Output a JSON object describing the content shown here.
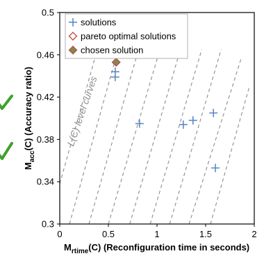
{
  "chart_data": {
    "type": "scatter",
    "x_axis": {
      "label_main": "M",
      "label_sub": "rtime",
      "label_rest": "(C) (Reconfiguration time in seconds)",
      "range": [
        0,
        2
      ],
      "ticks": [
        "0",
        "0.5",
        "1",
        "1.5",
        "2"
      ]
    },
    "y_axis": {
      "label_main": "M",
      "label_sub": "acc",
      "label_rest": "(C) (Accuracy ratio)",
      "range": [
        0.3,
        0.5
      ],
      "ticks": [
        "0.3",
        "0.34",
        "0.38",
        "0.42",
        "0.46",
        "0.5"
      ]
    },
    "grid": false,
    "legend_position": "top-left",
    "series": [
      {
        "name": "solutions",
        "marker": "plus",
        "color": "#5b8ac6",
        "points": [
          {
            "x": 0.57,
            "y": 0.439
          },
          {
            "x": 0.57,
            "y": 0.444
          },
          {
            "x": 0.82,
            "y": 0.395
          },
          {
            "x": 1.27,
            "y": 0.394
          },
          {
            "x": 1.37,
            "y": 0.398
          },
          {
            "x": 1.58,
            "y": 0.405
          },
          {
            "x": 1.6,
            "y": 0.353
          }
        ]
      },
      {
        "name": "pareto optimal solutions",
        "marker": "diamond-open",
        "color": "#c0504d",
        "points": [
          {
            "x": 0.58,
            "y": 0.453
          }
        ]
      },
      {
        "name": "chosen solution",
        "marker": "diamond-filled",
        "color": "#c0504d",
        "fill": "#7a8c4e",
        "points": [
          {
            "x": 0.58,
            "y": 0.453
          }
        ]
      }
    ],
    "level_curves": {
      "label": "L(C) level curves",
      "color": "#8c8c8c",
      "lines": [
        {
          "from": {
            "x": 0.0,
            "y": 0.338
          },
          "to": {
            "x": 0.38,
            "y": 0.463
          }
        },
        {
          "from": {
            "x": 0.1,
            "y": 0.3
          },
          "to": {
            "x": 0.6,
            "y": 0.465
          }
        },
        {
          "from": {
            "x": 0.3,
            "y": 0.3
          },
          "to": {
            "x": 0.81,
            "y": 0.465
          }
        },
        {
          "from": {
            "x": 0.5,
            "y": 0.3
          },
          "to": {
            "x": 1.03,
            "y": 0.465
          }
        },
        {
          "from": {
            "x": 0.72,
            "y": 0.3
          },
          "to": {
            "x": 1.24,
            "y": 0.465
          }
        },
        {
          "from": {
            "x": 0.93,
            "y": 0.3
          },
          "to": {
            "x": 1.46,
            "y": 0.465
          }
        },
        {
          "from": {
            "x": 1.13,
            "y": 0.3
          },
          "to": {
            "x": 1.66,
            "y": 0.465
          }
        },
        {
          "from": {
            "x": 1.33,
            "y": 0.3
          },
          "to": {
            "x": 1.87,
            "y": 0.458
          }
        },
        {
          "from": {
            "x": 1.55,
            "y": 0.3
          },
          "to": {
            "x": 1.95,
            "y": 0.43
          }
        }
      ]
    }
  },
  "decorations": {
    "checkmark_color": "#3da12a"
  }
}
